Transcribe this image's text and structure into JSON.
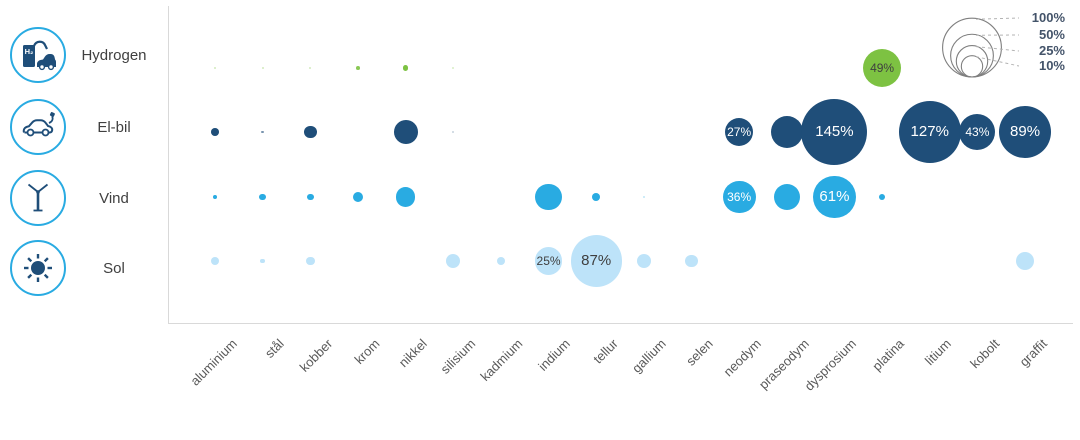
{
  "chart_data": {
    "type": "bubble",
    "title": "",
    "x_categories": [
      "aluminium",
      "stål",
      "kobber",
      "krom",
      "nikkel",
      "silisium",
      "kadmium",
      "indium",
      "tellur",
      "gallium",
      "selen",
      "neodym",
      "praseodym",
      "dysprosium",
      "platina",
      "litium",
      "kobolt",
      "graffit"
    ],
    "rows": [
      {
        "key": "hydrogen",
        "label": "Hydrogen",
        "color": "#7DC242",
        "label_text_color": "#3F3F3F"
      },
      {
        "key": "elbil",
        "label": "El-bil",
        "color": "#1F4E79",
        "label_text_color": "#FFFFFF"
      },
      {
        "key": "vind",
        "label": "Vind",
        "color": "#29ABE2",
        "label_text_color": "#FFFFFF"
      },
      {
        "key": "sol",
        "label": "Sol",
        "color": "#BDE3F9",
        "label_text_color": "#3F3F3F"
      }
    ],
    "bubbles": [
      {
        "row": "hydrogen",
        "x": "aluminium",
        "value": 0.15,
        "label": "",
        "opacity": 0.35
      },
      {
        "row": "hydrogen",
        "x": "stål",
        "value": 0.15,
        "label": "",
        "opacity": 0.35
      },
      {
        "row": "hydrogen",
        "x": "kobber",
        "value": 0.15,
        "label": "",
        "opacity": 0.35
      },
      {
        "row": "hydrogen",
        "x": "krom",
        "value": 0.5,
        "label": "",
        "opacity": 0.9
      },
      {
        "row": "hydrogen",
        "x": "nikkel",
        "value": 1.1,
        "label": "",
        "opacity": 1
      },
      {
        "row": "hydrogen",
        "x": "silisium",
        "value": 0.1,
        "label": "",
        "opacity": 0.3
      },
      {
        "row": "hydrogen",
        "x": "platina",
        "value": 49,
        "label": "49%",
        "opacity": 1
      },
      {
        "row": "elbil",
        "x": "aluminium",
        "value": 2,
        "label": "",
        "opacity": 1
      },
      {
        "row": "elbil",
        "x": "stål",
        "value": 0.2,
        "label": "",
        "opacity": 0.6
      },
      {
        "row": "elbil",
        "x": "kobber",
        "value": 5.5,
        "label": "",
        "opacity": 1
      },
      {
        "row": "elbil",
        "x": "nikkel",
        "value": 19,
        "label": "",
        "opacity": 1
      },
      {
        "row": "elbil",
        "x": "silisium",
        "value": 0.1,
        "label": "",
        "opacity": 0.25
      },
      {
        "row": "elbil",
        "x": "neodym",
        "value": 27,
        "label": "27%",
        "opacity": 1
      },
      {
        "row": "elbil",
        "x": "praseodym",
        "value": 34,
        "label": "",
        "opacity": 1
      },
      {
        "row": "elbil",
        "x": "dysprosium",
        "value": 145,
        "label": "145%",
        "opacity": 1
      },
      {
        "row": "elbil",
        "x": "litium",
        "value": 127,
        "label": "127%",
        "opacity": 1
      },
      {
        "row": "elbil",
        "x": "kobolt",
        "value": 43,
        "label": "43%",
        "opacity": 1
      },
      {
        "row": "elbil",
        "x": "graffit",
        "value": 89,
        "label": "89%",
        "opacity": 1
      },
      {
        "row": "vind",
        "x": "aluminium",
        "value": 0.7,
        "label": "",
        "opacity": 1
      },
      {
        "row": "vind",
        "x": "stål",
        "value": 1.4,
        "label": "",
        "opacity": 1
      },
      {
        "row": "vind",
        "x": "kobber",
        "value": 1.4,
        "label": "",
        "opacity": 1
      },
      {
        "row": "vind",
        "x": "krom",
        "value": 3.3,
        "label": "",
        "opacity": 1
      },
      {
        "row": "vind",
        "x": "nikkel",
        "value": 13,
        "label": "",
        "opacity": 1
      },
      {
        "row": "vind",
        "x": "indium",
        "value": 23,
        "label": "",
        "opacity": 1
      },
      {
        "row": "vind",
        "x": "tellur",
        "value": 2.1,
        "label": "",
        "opacity": 1
      },
      {
        "row": "vind",
        "x": "gallium",
        "value": 0.1,
        "label": "",
        "opacity": 0.3
      },
      {
        "row": "vind",
        "x": "neodym",
        "value": 36,
        "label": "36%",
        "opacity": 1
      },
      {
        "row": "vind",
        "x": "praseodym",
        "value": 23,
        "label": "",
        "opacity": 1
      },
      {
        "row": "vind",
        "x": "dysprosium",
        "value": 61,
        "label": "61%",
        "opacity": 1
      },
      {
        "row": "vind",
        "x": "platina",
        "value": 1.2,
        "label": "",
        "opacity": 1
      },
      {
        "row": "sol",
        "x": "aluminium",
        "value": 2.1,
        "label": "",
        "opacity": 1
      },
      {
        "row": "sol",
        "x": "stål",
        "value": 0.7,
        "label": "",
        "opacity": 1
      },
      {
        "row": "sol",
        "x": "kobber",
        "value": 2.5,
        "label": "",
        "opacity": 1
      },
      {
        "row": "sol",
        "x": "silisium",
        "value": 7,
        "label": "",
        "opacity": 1
      },
      {
        "row": "sol",
        "x": "kadmium",
        "value": 2.1,
        "label": "",
        "opacity": 1
      },
      {
        "row": "sol",
        "x": "indium",
        "value": 25,
        "label": "25%",
        "opacity": 1
      },
      {
        "row": "sol",
        "x": "tellur",
        "value": 87,
        "label": "87%",
        "opacity": 1
      },
      {
        "row": "sol",
        "x": "gallium",
        "value": 6.5,
        "label": "",
        "opacity": 1
      },
      {
        "row": "sol",
        "x": "selen",
        "value": 5,
        "label": "",
        "opacity": 1
      },
      {
        "row": "sol",
        "x": "graffit",
        "value": 11,
        "label": "",
        "opacity": 1
      }
    ],
    "size_legend": {
      "labels": [
        "100%",
        "50%",
        "25%",
        "10%"
      ],
      "values": [
        100,
        50,
        25,
        10
      ]
    },
    "legend_position": "top-right",
    "grid": false
  },
  "colors": {
    "navy": "#1F4E79",
    "bright_blue": "#29ABE2",
    "light_blue": "#BDE3F9",
    "green": "#7DC242",
    "axis_line": "#D9D9D9",
    "x_label_text": "#595959",
    "row_label_text": "#404040",
    "legend_text": "#44546A"
  }
}
